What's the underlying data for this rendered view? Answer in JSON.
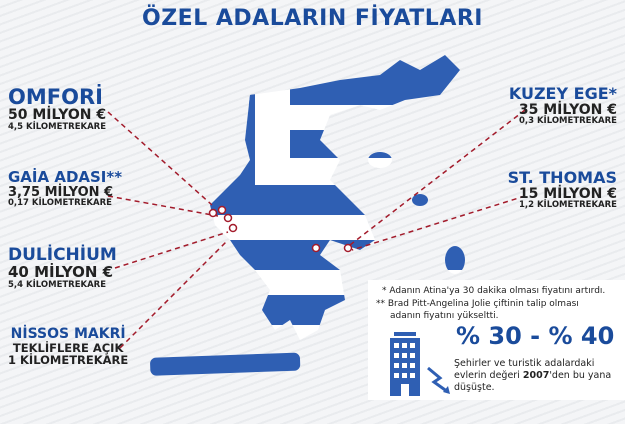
{
  "title": "ÖZEL ADALARIN FİYATLARI",
  "islands_left": [
    {
      "name": "OMFORİ",
      "price": "50 MİLYON €",
      "area": "4,5 KİLOMETREKARE"
    },
    {
      "name": "GAİA ADASI**",
      "price": "3,75 MİLYON €",
      "area": "0,17 KİLOMETREKARE"
    },
    {
      "name": "DULİCHİUM",
      "price": "40 MİLYON €",
      "area": "5,4 KİLOMETREKARE"
    },
    {
      "name": "NİSSOS MAKRİ",
      "price": "TEKLİFLERE AÇIK",
      "area": "1 KİLOMETREKARE"
    }
  ],
  "islands_right": [
    {
      "name": "KUZEY EGE*",
      "price": "35 MİLYON €",
      "area": "0,3 KİLOMETREKARE"
    },
    {
      "name": "ST. THOMAS",
      "price": "15 MİLYON €",
      "area": "1,2 KİLOMETREKARE"
    }
  ],
  "notes": {
    "note1": "* Adanın Atina'ya 30 dakika olması fiyatını artırdı.",
    "note2": "** Brad Pitt-Angelina Jolie çiftinin talip olması",
    "note2b": "adanın fiyatını yükseltti."
  },
  "stat": {
    "percent": "% 30 - % 40",
    "desc1": "Şehirler ve turistik adalardaki",
    "desc2a": "evlerin değeri ",
    "desc2b": "2007",
    "desc2c": "'den bu yana",
    "desc3": "düşüşte."
  },
  "colors": {
    "blue": "#1a4b9b",
    "flag_blue": "#2f5fb3",
    "red_dash": "#a31b2b"
  },
  "icons": [
    "building-icon",
    "downtrend-arrow-icon",
    "location-pin-icon"
  ]
}
